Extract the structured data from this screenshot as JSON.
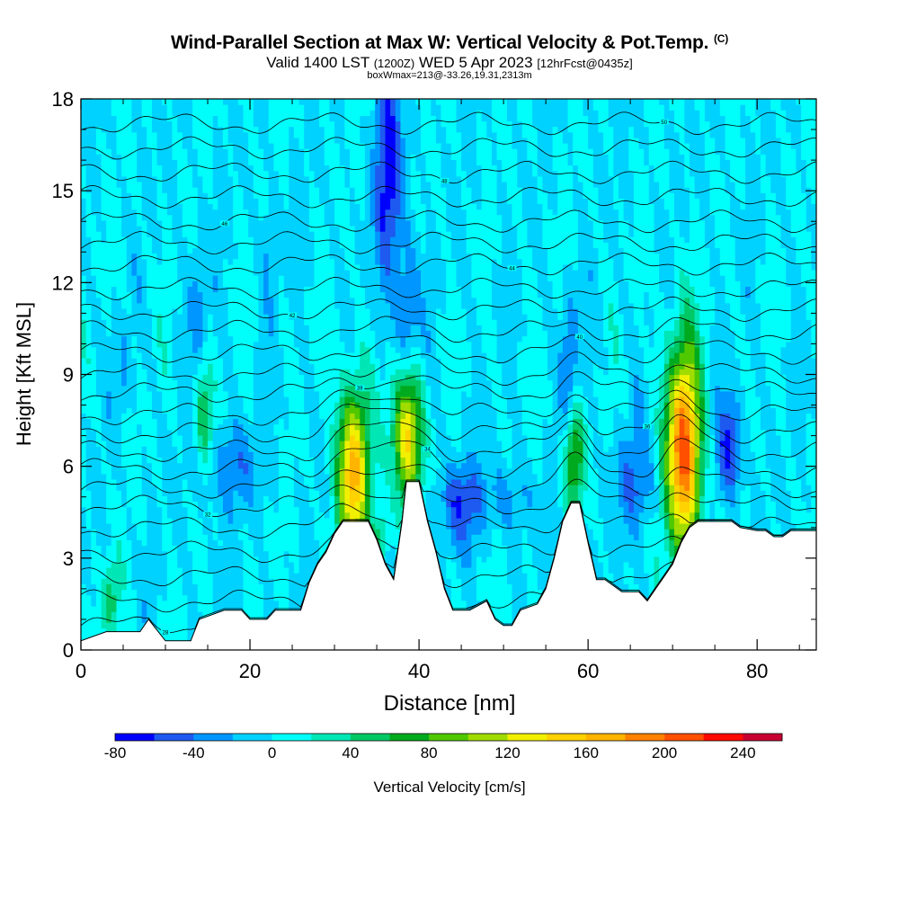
{
  "title": {
    "main": "Wind-Parallel Section at Max W: Vertical Velocity & Pot.Temp.",
    "copyright": "(C)",
    "valid_prefix": "Valid 1400 LST",
    "valid_utc": "(1200Z)",
    "valid_date": "WED 5 Apr 2023",
    "forecast": "[12hrFcst@0435z]",
    "box_info": "boxWmax=213@-33.26,19.31,2313m"
  },
  "chart_data": {
    "type": "heatmap",
    "xlabel": "Distance [nm]",
    "ylabel": "Height [Kft MSL]",
    "xlim": [
      0,
      87
    ],
    "ylim": [
      0,
      18
    ],
    "x_ticks": [
      0,
      20,
      40,
      60,
      80
    ],
    "y_ticks": [
      0,
      3,
      6,
      9,
      12,
      15,
      18
    ],
    "colorbar": {
      "label": "Vertical Velocity [cm/s]",
      "ticks": [
        -80,
        -40,
        0,
        40,
        80,
        120,
        160,
        200,
        240
      ],
      "levels": [
        -80,
        -60,
        -40,
        -20,
        0,
        20,
        40,
        60,
        80,
        100,
        120,
        140,
        160,
        180,
        200,
        220,
        240,
        260
      ],
      "colors": [
        "#0000ff",
        "#1e5af0",
        "#0096ff",
        "#00d2ff",
        "#00fffa",
        "#00e6b4",
        "#00c864",
        "#00aa1e",
        "#50c800",
        "#a0dc00",
        "#f0f000",
        "#ffd200",
        "#ffb400",
        "#ff8200",
        "#ff5000",
        "#ff0a00",
        "#c80032"
      ]
    },
    "terrain_kft": [
      [
        0,
        0.3
      ],
      [
        3,
        0.6
      ],
      [
        7,
        0.6
      ],
      [
        8,
        1
      ],
      [
        10,
        0.3
      ],
      [
        13,
        0.3
      ],
      [
        14,
        1
      ],
      [
        17,
        1.3
      ],
      [
        19,
        1.3
      ],
      [
        20,
        1
      ],
      [
        22,
        1
      ],
      [
        23,
        1.3
      ],
      [
        26,
        1.3
      ],
      [
        27,
        2.2
      ],
      [
        28,
        2.8
      ],
      [
        29,
        3.2
      ],
      [
        30,
        3.8
      ],
      [
        31,
        4.2
      ],
      [
        34,
        4.2
      ],
      [
        35,
        3.6
      ],
      [
        36,
        2.8
      ],
      [
        37,
        2.3
      ],
      [
        38,
        4.2
      ],
      [
        38.5,
        5.5
      ],
      [
        40,
        5.5
      ],
      [
        41,
        4.2
      ],
      [
        42,
        3.2
      ],
      [
        43,
        2
      ],
      [
        44,
        1.3
      ],
      [
        46,
        1.3
      ],
      [
        48,
        1.6
      ],
      [
        49,
        1
      ],
      [
        50,
        0.8
      ],
      [
        51,
        0.8
      ],
      [
        52,
        1.3
      ],
      [
        54,
        1.5
      ],
      [
        55,
        2
      ],
      [
        56,
        3
      ],
      [
        57,
        4.2
      ],
      [
        58,
        4.8
      ],
      [
        59,
        4.8
      ],
      [
        60,
        3.5
      ],
      [
        61,
        2.3
      ],
      [
        62,
        2.3
      ],
      [
        63,
        2.1
      ],
      [
        64,
        1.9
      ],
      [
        66,
        1.9
      ],
      [
        67,
        1.6
      ],
      [
        68,
        2
      ],
      [
        69,
        2.4
      ],
      [
        70,
        2.8
      ],
      [
        71,
        3.5
      ],
      [
        72,
        4
      ],
      [
        73,
        4.2
      ],
      [
        77,
        4.2
      ],
      [
        78,
        4
      ],
      [
        80,
        3.9
      ],
      [
        81,
        3.9
      ],
      [
        82,
        3.7
      ],
      [
        83,
        3.7
      ],
      [
        84,
        3.9
      ],
      [
        87,
        3.9
      ]
    ],
    "vertical_velocity_cells": [
      {
        "x": 32.2,
        "y": 5.8,
        "sx": 1.3,
        "sy": 1.9,
        "w": 170
      },
      {
        "x": 38.6,
        "y": 7.0,
        "sx": 1.2,
        "sy": 1.6,
        "w": 150
      },
      {
        "x": 71.3,
        "y": 6.5,
        "sx": 1.4,
        "sy": 2.4,
        "w": 213
      },
      {
        "x": 58.3,
        "y": 6.3,
        "sx": 0.8,
        "sy": 1.2,
        "w": 90
      },
      {
        "x": 14.5,
        "y": 7.6,
        "sx": 0.8,
        "sy": 1.2,
        "w": 60
      },
      {
        "x": 3.5,
        "y": 1.6,
        "sx": 0.7,
        "sy": 0.9,
        "w": 55
      },
      {
        "x": 35.5,
        "y": 3.6,
        "sx": 0.6,
        "sy": 0.6,
        "w": 55
      },
      {
        "x": 36.5,
        "y": 15.5,
        "sx": 1.2,
        "sy": 2.5,
        "w": -70
      },
      {
        "x": 38.6,
        "y": 10.8,
        "sx": 0.9,
        "sy": 1.6,
        "w": -55
      },
      {
        "x": 44.8,
        "y": 4.8,
        "sx": 1.8,
        "sy": 1.0,
        "w": -55
      },
      {
        "x": 76.8,
        "y": 6.6,
        "sx": 1.1,
        "sy": 1.2,
        "w": -65
      },
      {
        "x": 17.5,
        "y": 6.0,
        "sx": 2.8,
        "sy": 1.0,
        "w": -35
      },
      {
        "x": 57.8,
        "y": 9.4,
        "sx": 0.7,
        "sy": 1.6,
        "w": -45
      },
      {
        "x": 13.8,
        "y": 11.3,
        "sx": 0.7,
        "sy": 1.5,
        "w": -35
      },
      {
        "x": 22.5,
        "y": 13.2,
        "sx": 0.7,
        "sy": 1.2,
        "w": -30
      },
      {
        "x": 65.5,
        "y": 5.5,
        "sx": 1.8,
        "sy": 1.2,
        "w": -40
      },
      {
        "x": 50.5,
        "y": 5.0,
        "sx": 2.0,
        "sy": 0.8,
        "w": -30
      },
      {
        "x": 5.0,
        "y": 9.2,
        "sx": 0.6,
        "sy": 1.0,
        "w": -30
      }
    ],
    "theta_contours": [
      {
        "level": "28",
        "base": 0.8
      },
      {
        "level": "",
        "base": 1.6
      },
      {
        "level": "",
        "base": 2.4
      },
      {
        "level": "",
        "base": 3.2
      },
      {
        "level": "",
        "base": 4.0
      },
      {
        "level": "32",
        "base": 4.7
      },
      {
        "level": "",
        "base": 5.3
      },
      {
        "level": "34",
        "base": 5.9
      },
      {
        "level": "",
        "base": 6.5
      },
      {
        "level": "36",
        "base": 7.1
      },
      {
        "level": "",
        "base": 7.7
      },
      {
        "level": "38",
        "base": 8.4
      },
      {
        "level": "",
        "base": 9.0
      },
      {
        "level": "40",
        "base": 9.7
      },
      {
        "level": "",
        "base": 10.4
      },
      {
        "level": "42",
        "base": 11.1
      },
      {
        "level": "",
        "base": 11.8
      },
      {
        "level": "44",
        "base": 12.6
      },
      {
        "level": "",
        "base": 13.3
      },
      {
        "level": "46",
        "base": 14.0
      },
      {
        "level": "",
        "base": 14.8
      },
      {
        "level": "48",
        "base": 15.6
      },
      {
        "level": "",
        "base": 16.4
      },
      {
        "level": "50",
        "base": 17.2
      }
    ]
  }
}
